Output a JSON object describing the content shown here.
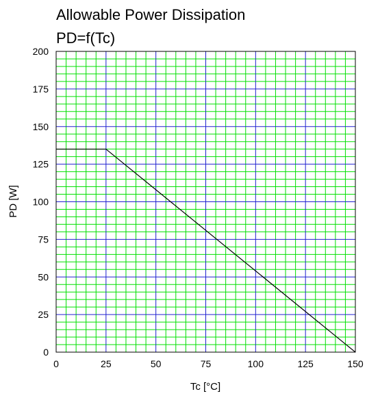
{
  "chart_data": {
    "type": "line",
    "title": "Allowable Power Dissipation",
    "subtitle": "PD=f(Tc)",
    "xlabel": "Tc [°C]",
    "ylabel": "PD [W]",
    "xlim": [
      0,
      150
    ],
    "ylim": [
      0,
      200
    ],
    "xticks": [
      "0",
      "25",
      "50",
      "75",
      "100",
      "125",
      "150"
    ],
    "yticks": [
      "0",
      "25",
      "50",
      "75",
      "100",
      "125",
      "150",
      "175",
      "200"
    ],
    "grid": true,
    "major_grid_step_x": 25,
    "major_grid_step_y": 25,
    "minor_grid_step_x": 5,
    "minor_grid_step_y": 5,
    "series": [
      {
        "x": [
          0,
          25,
          150
        ],
        "y": [
          135,
          135,
          0
        ]
      }
    ]
  },
  "colors": {
    "minor_grid": "#00e000",
    "major_grid": "#2020d0",
    "series_line": "#000000",
    "frame": "#000000"
  }
}
